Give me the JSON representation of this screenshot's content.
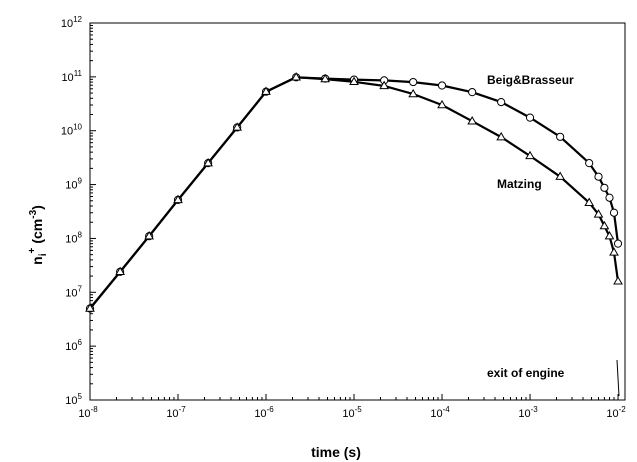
{
  "chart_data": {
    "type": "line",
    "xscale": "log",
    "yscale": "log",
    "xlim": [
      1e-08,
      0.012
    ],
    "ylim": [
      100000.0,
      1000000000000.0
    ],
    "grid": false,
    "xlabel": "time (s)",
    "ylabel": {
      "base": "n",
      "sub": "i",
      "sup": "+",
      "unit_base": "(cm",
      "unit_sup": "-3",
      "unit_end": ")"
    },
    "x_ticks": [
      {
        "value": 1e-08,
        "base": "10",
        "exp": "-8"
      },
      {
        "value": 1e-07,
        "base": "10",
        "exp": "-7"
      },
      {
        "value": 1e-06,
        "base": "10",
        "exp": "-6"
      },
      {
        "value": 1e-05,
        "base": "10",
        "exp": "-5"
      },
      {
        "value": 0.0001,
        "base": "10",
        "exp": "-4"
      },
      {
        "value": 0.001,
        "base": "10",
        "exp": "-3"
      },
      {
        "value": 0.01,
        "base": "10",
        "exp": "-2"
      }
    ],
    "y_ticks": [
      {
        "value": 100000.0,
        "base": "10",
        "exp": "5"
      },
      {
        "value": 1000000.0,
        "base": "10",
        "exp": "6"
      },
      {
        "value": 10000000.0,
        "base": "10",
        "exp": "7"
      },
      {
        "value": 100000000.0,
        "base": "10",
        "exp": "8"
      },
      {
        "value": 1000000000.0,
        "base": "10",
        "exp": "9"
      },
      {
        "value": 10000000000.0,
        "base": "10",
        "exp": "10"
      },
      {
        "value": 100000000000.0,
        "base": "10",
        "exp": "11"
      },
      {
        "value": 1000000000000.0,
        "base": "10",
        "exp": "12"
      }
    ],
    "series": [
      {
        "name": "Beig&Brasseur",
        "marker": "circle",
        "x": [
          1e-08,
          2.2e-08,
          4.7e-08,
          1e-07,
          2.2e-07,
          4.7e-07,
          1e-06,
          2.2e-06,
          4.7e-06,
          1e-05,
          2.2e-05,
          4.7e-05,
          0.0001,
          0.00022,
          0.00047,
          0.001,
          0.0022,
          0.0047,
          0.006,
          0.007,
          0.008,
          0.009,
          0.01
        ],
        "y": [
          5000000.0,
          24000000.0,
          110000000.0,
          520000000.0,
          2500000000.0,
          11500000000.0,
          53000000000.0,
          98000000000.0,
          93000000000.0,
          89000000000.0,
          86000000000.0,
          80000000000.0,
          69000000000.0,
          52000000000.0,
          34000000000.0,
          17500000000.0,
          7700000000.0,
          2500000000.0,
          1400000000.0,
          870000000.0,
          570000000.0,
          300000000.0,
          80000000.0
        ]
      },
      {
        "name": "Matzing",
        "marker": "triangle",
        "x": [
          1e-08,
          2.2e-08,
          4.7e-08,
          1e-07,
          2.2e-07,
          4.7e-07,
          1e-06,
          2.2e-06,
          4.7e-06,
          1e-05,
          2.2e-05,
          4.7e-05,
          0.0001,
          0.00022,
          0.00047,
          0.001,
          0.0022,
          0.0047,
          0.006,
          0.007,
          0.008,
          0.009,
          0.01
        ],
        "y": [
          5000000.0,
          24000000.0,
          110000000.0,
          520000000.0,
          2500000000.0,
          11500000000.0,
          53000000000.0,
          98000000000.0,
          91000000000.0,
          81000000000.0,
          68000000000.0,
          48000000000.0,
          30000000000.0,
          15000000000.0,
          7600000000.0,
          3400000000.0,
          1400000000.0,
          460000000.0,
          280000000.0,
          170000000.0,
          110000000.0,
          55000000.0,
          16000000.0
        ]
      }
    ],
    "annotations": [
      {
        "text": "Beig&Brasseur"
      },
      {
        "text": "Matzing"
      },
      {
        "text": "exit of engine"
      }
    ]
  }
}
